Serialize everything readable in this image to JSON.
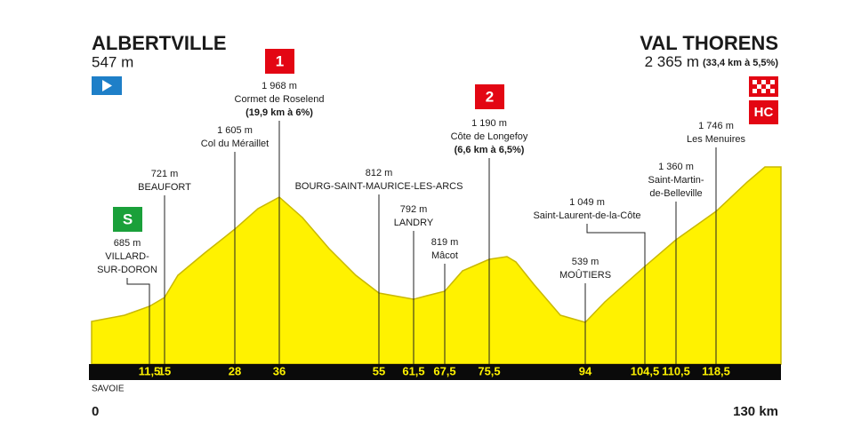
{
  "start": {
    "name": "ALBERTVILLE",
    "altitude": "547 m",
    "km": "0"
  },
  "finish": {
    "name": "VAL THORENS",
    "altitude": "2 365 m",
    "climb": "(33,4 km à 5,5%)",
    "km": "130 km",
    "category": "HC"
  },
  "region": "SAVOIE",
  "points": [
    {
      "km": "11,5",
      "altitude": "685 m",
      "name": [
        "VILLARD-",
        "SUR-DORON"
      ],
      "badge": "S"
    },
    {
      "km": "15",
      "altitude": "721 m",
      "name": [
        "BEAUFORT"
      ]
    },
    {
      "km": "28",
      "altitude": "1 605 m",
      "name": [
        "Col du Méraillet"
      ]
    },
    {
      "km": "36",
      "altitude": "1 968 m",
      "name": [
        "Cormet de Roselend"
      ],
      "climb": "(19,9 km à 6%)",
      "badge": "1"
    },
    {
      "km": "55",
      "altitude": "812 m",
      "name": [
        "BOURG-SAINT-MAURICE-LES-ARCS"
      ]
    },
    {
      "km": "61,5",
      "altitude": "792 m",
      "name": [
        "LANDRY"
      ]
    },
    {
      "km": "67,5",
      "altitude": "819 m",
      "name": [
        "Mâcot"
      ]
    },
    {
      "km": "75,5",
      "altitude": "1 190 m",
      "name": [
        "Côte de Longefoy"
      ],
      "climb": "(6,6 km à 6,5%)",
      "badge": "2"
    },
    {
      "km": "94",
      "altitude": "539 m",
      "name": [
        "MOÛTIERS"
      ]
    },
    {
      "km": "104,5",
      "altitude": "1 049 m",
      "name": [
        "Saint-Laurent-de-la-Côte"
      ]
    },
    {
      "km": "110,5",
      "altitude": "1 360 m",
      "name": [
        "Saint-Martin-",
        "de-Belleville"
      ]
    },
    {
      "km": "118,5",
      "altitude": "1 746 m",
      "name": [
        "Les Menuires"
      ]
    }
  ]
}
